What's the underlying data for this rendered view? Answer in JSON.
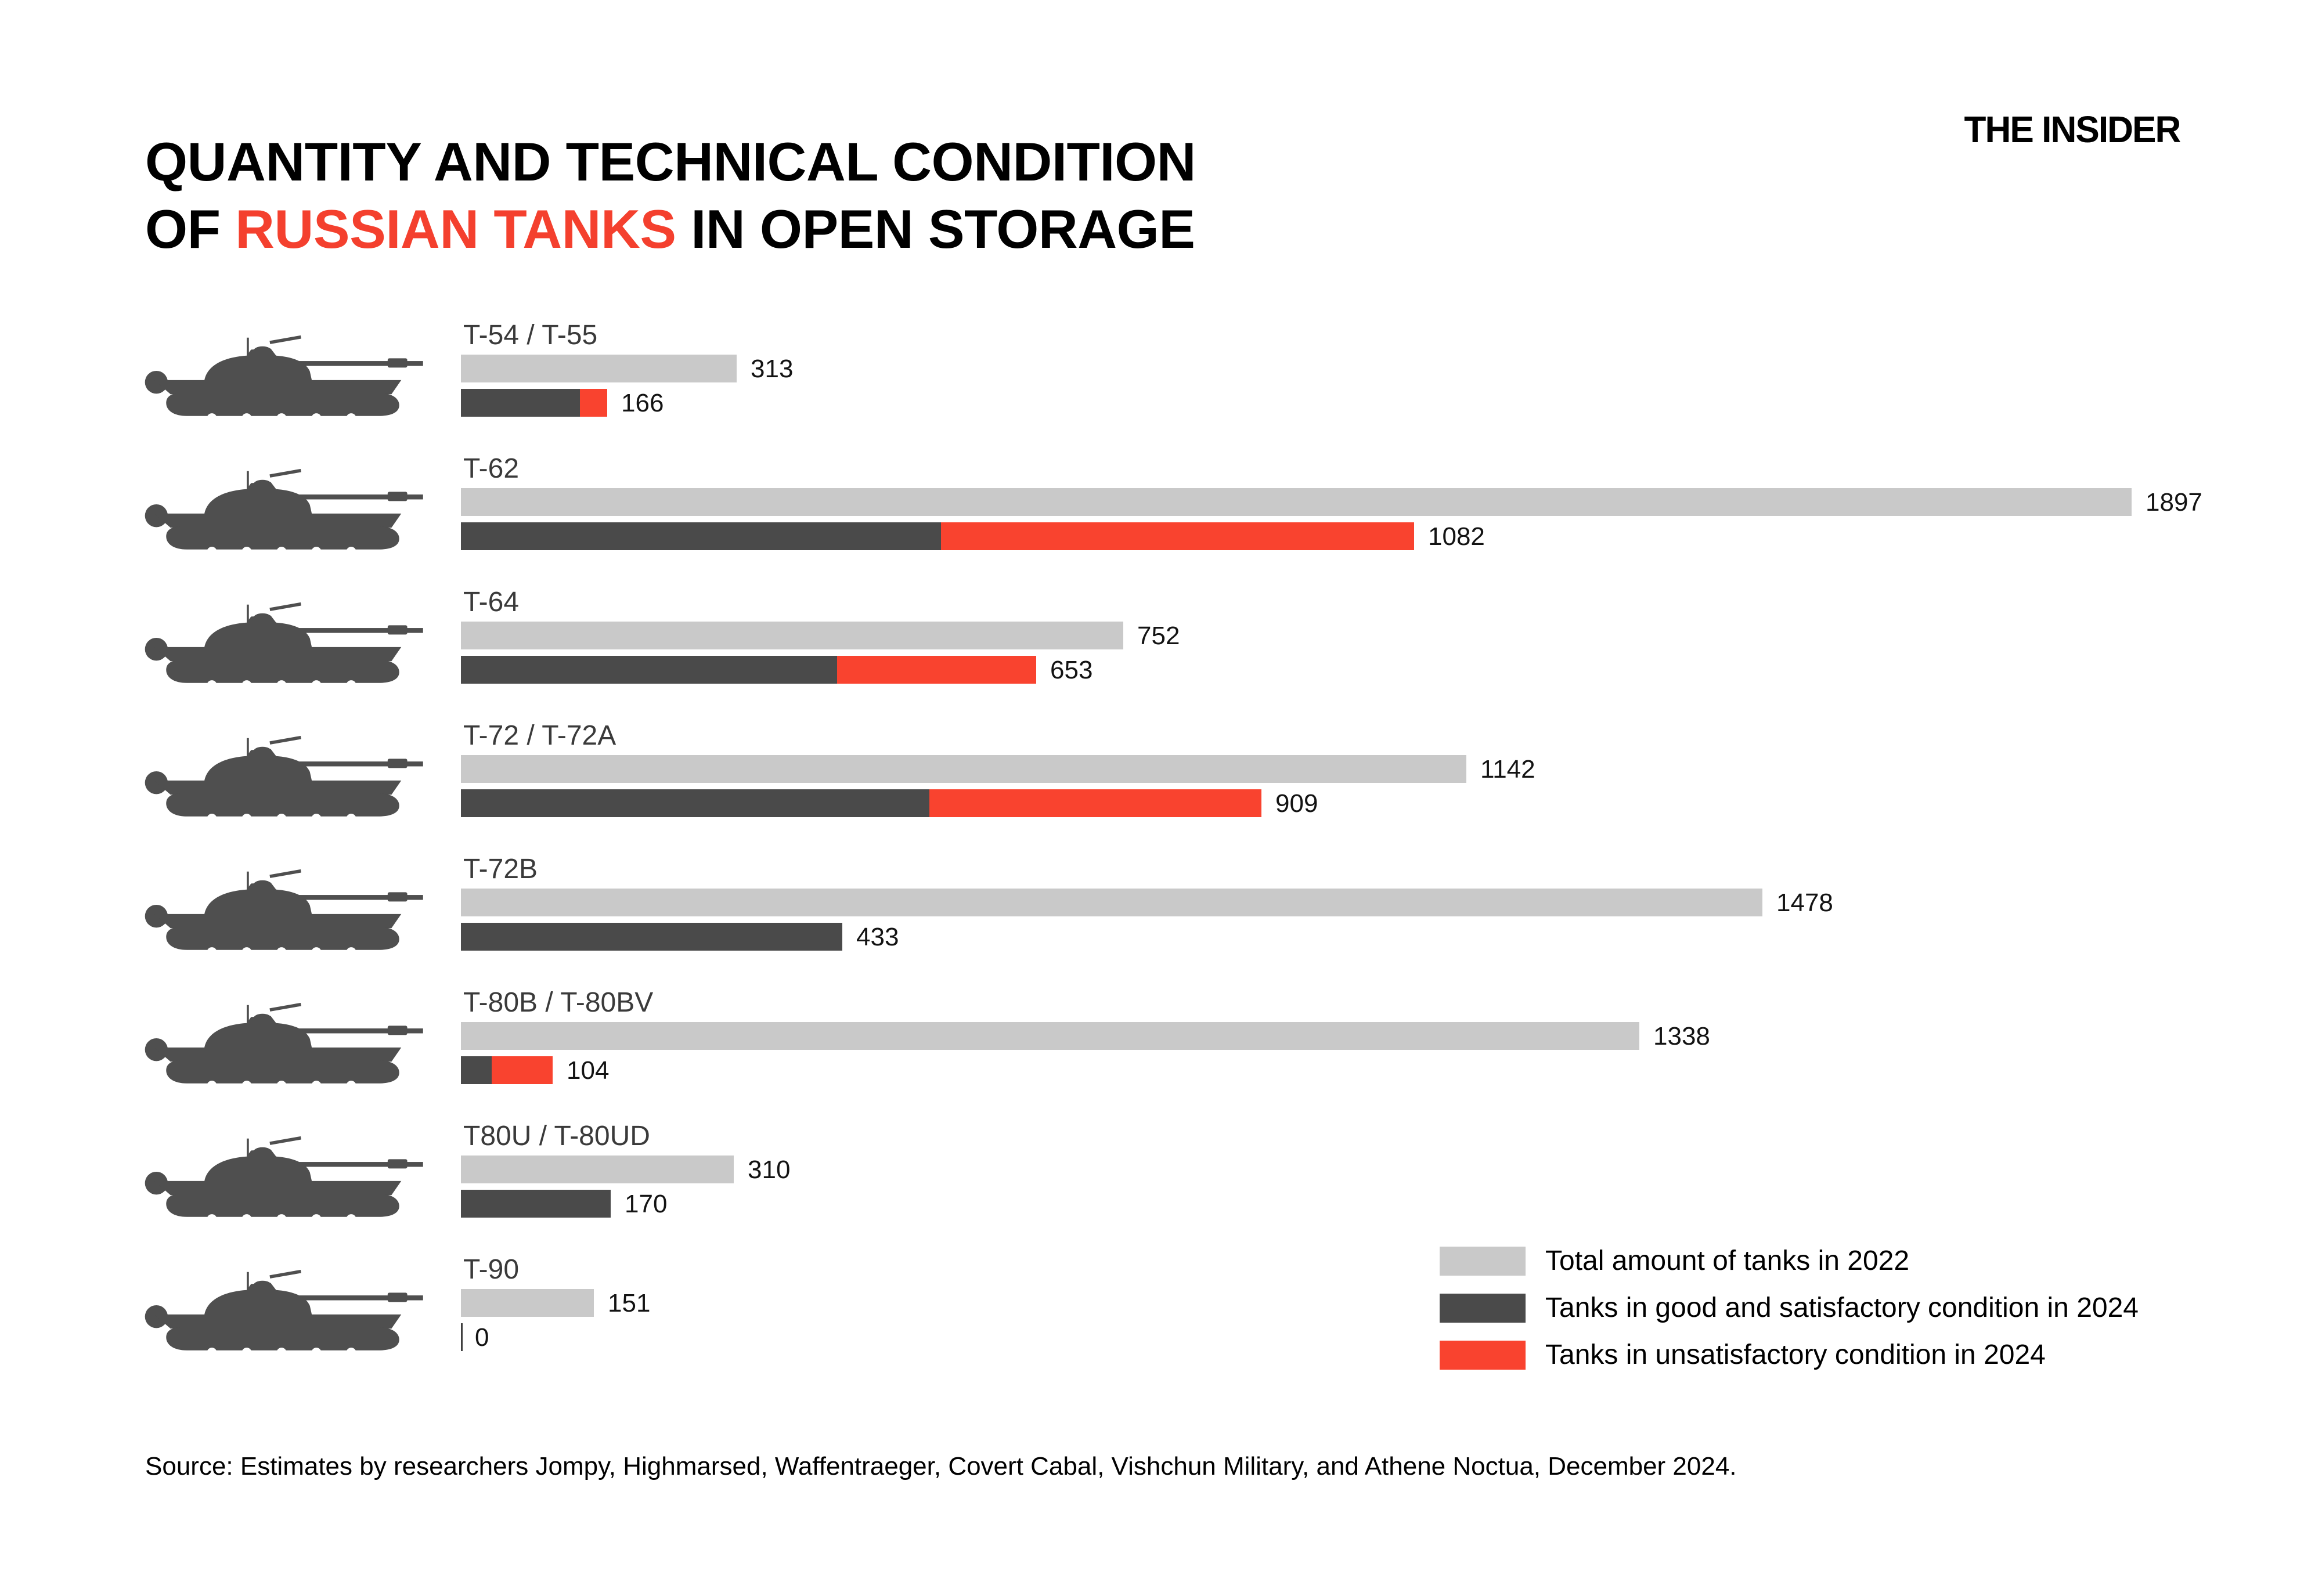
{
  "header": {
    "title_line1": "QUANTITY AND TECHNICAL CONDITION",
    "title_line2_prefix": "OF ",
    "title_line2_accent": "RUSSIAN TANKS",
    "title_line2_suffix": " IN OPEN STORAGE",
    "logo": "THE INSIDER"
  },
  "chart_data": {
    "type": "bar",
    "orientation": "horizontal",
    "title": "QUANTITY AND TECHNICAL CONDITION OF RUSSIAN TANKS IN OPEN STORAGE",
    "xlim": [
      0,
      1897
    ],
    "grid": false,
    "legend_position": "bottom-right",
    "categories": [
      "T-54 / T-55",
      "T-62",
      "T-64",
      "T-72 / T-72A",
      "T-72B",
      "T-80B / T-80BV",
      "T80U / T-80UD",
      "T-90"
    ],
    "series": [
      {
        "name": "Total amount of tanks in 2022",
        "values": [
          313,
          1897,
          752,
          1142,
          1478,
          1338,
          310,
          151
        ]
      },
      {
        "name": "Tanks in good and satisfactory condition in 2024",
        "values": [
          135,
          545,
          427,
          532,
          433,
          35,
          170,
          0
        ]
      },
      {
        "name": "Tanks in unsatisfactory condition in 2024",
        "values": [
          31,
          537,
          226,
          377,
          0,
          69,
          0,
          0
        ]
      }
    ],
    "condition_2024_bar_labels": [
      166,
      1082,
      653,
      909,
      433,
      104,
      170,
      0
    ],
    "rows": [
      {
        "type": "T-54 / T-55",
        "total_2022": 313,
        "good_2024": 135,
        "unsat_2024": 31,
        "condition_2024_label": "166"
      },
      {
        "type": "T-62",
        "total_2022": 1897,
        "good_2024": 545,
        "unsat_2024": 537,
        "condition_2024_label": "1082"
      },
      {
        "type": "T-64",
        "total_2022": 752,
        "good_2024": 427,
        "unsat_2024": 226,
        "condition_2024_label": "653"
      },
      {
        "type": "T-72 / T-72A",
        "total_2022": 1142,
        "good_2024": 532,
        "unsat_2024": 377,
        "condition_2024_label": "909"
      },
      {
        "type": "T-72B",
        "total_2022": 1478,
        "good_2024": 433,
        "unsat_2024": 0,
        "condition_2024_label": "433"
      },
      {
        "type": "T-80B / T-80BV",
        "total_2022": 1338,
        "good_2024": 35,
        "unsat_2024": 69,
        "condition_2024_label": "104"
      },
      {
        "type": "T80U / T-80UD",
        "total_2022": 310,
        "good_2024": 170,
        "unsat_2024": 0,
        "condition_2024_label": "170"
      },
      {
        "type": "T-90",
        "total_2022": 151,
        "good_2024": 0,
        "unsat_2024": 0,
        "condition_2024_label": "0"
      }
    ]
  },
  "legend": {
    "items": [
      {
        "label": "Total amount of tanks in 2022",
        "color_key": "bar_total"
      },
      {
        "label": "Tanks in good and satisfactory condition in 2024",
        "color_key": "bar_good"
      },
      {
        "label": "Tanks in unsatisfactory condition in 2024",
        "color_key": "bar_unsatisfactory"
      }
    ]
  },
  "footer": {
    "source": "Source: Estimates by researchers Jompy, Highmarsed, Waffentraeger, Covert Cabal, Vishchun Military, and Athene Noctua, December 2024."
  },
  "colors": {
    "bar_total": "#c9c9c9",
    "bar_good": "#4a4a4a",
    "bar_unsatisfactory": "#f9432f",
    "title_accent": "#f4402e",
    "tank_silhouette": "#4f4f4f"
  }
}
